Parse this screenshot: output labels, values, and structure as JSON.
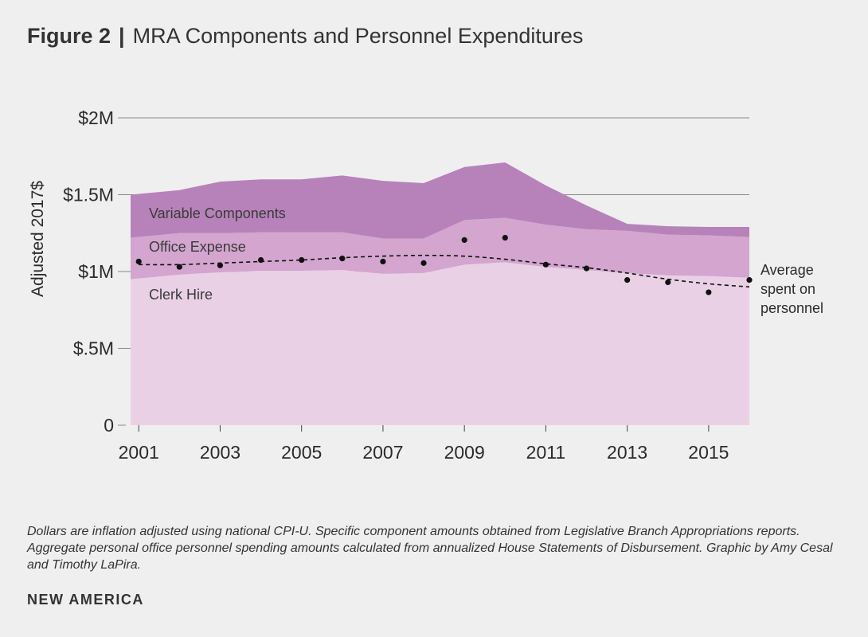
{
  "header": {
    "figure_label": "Figure 2",
    "separator": "|",
    "title": "MRA Components and Personnel Expenditures"
  },
  "caption": "Dollars are inflation adjusted using national CPI-U.  Specific component amounts obtained from Legislative Branch Appropriations reports. Aggregate personal office personnel spending amounts calculated from annualized House Statements of Disbursement. Graphic by Amy Cesal and Timothy LaPira.",
  "brand": "NEW AMERICA",
  "colors": {
    "background": "#efefef",
    "clerk_hire": "#e9d0e5",
    "office_expense": "#d3a5cf",
    "variable_components": "#b782b9",
    "grid": "#8a8a8a",
    "points": "#111111"
  },
  "chart_data": {
    "type": "area",
    "ylabel": "Adjusted 2017$",
    "xlim": [
      2000.8,
      2016
    ],
    "ylim": [
      0,
      2000000
    ],
    "y_ticks": [
      0,
      500000,
      1000000,
      1500000,
      2000000
    ],
    "y_tick_labels": [
      "0",
      "$.5M",
      "$1M",
      "$1.5M",
      "$2M"
    ],
    "x_ticks": [
      2001,
      2003,
      2005,
      2007,
      2009,
      2011,
      2013,
      2015
    ],
    "x_tick_labels": [
      "2001",
      "2003",
      "2005",
      "2007",
      "2009",
      "2011",
      "2013",
      "2015"
    ],
    "grid": "horizontal",
    "x": [
      2000.8,
      2002,
      2003,
      2004,
      2005,
      2006,
      2007,
      2008,
      2009,
      2010,
      2011,
      2012,
      2013,
      2014,
      2015,
      2016
    ],
    "series": [
      {
        "name": "Clerk Hire",
        "values": [
          950000,
          980000,
          995000,
          1005000,
          1005000,
          1010000,
          985000,
          990000,
          1045000,
          1060000,
          1030000,
          1010000,
          990000,
          975000,
          970000,
          960000
        ]
      },
      {
        "name": "Office Expense",
        "values": [
          270000,
          270000,
          255000,
          250000,
          250000,
          245000,
          230000,
          225000,
          290000,
          290000,
          275000,
          265000,
          275000,
          265000,
          265000,
          265000
        ]
      },
      {
        "name": "Variable Components",
        "values": [
          280000,
          280000,
          335000,
          345000,
          345000,
          370000,
          375000,
          360000,
          345000,
          360000,
          255000,
          155000,
          45000,
          55000,
          55000,
          65000
        ]
      }
    ],
    "personnel_points": {
      "name": "Average spent on personnel",
      "x": [
        2001,
        2002,
        2003,
        2004,
        2005,
        2006,
        2007,
        2008,
        2009,
        2010,
        2011,
        2012,
        2013,
        2014,
        2015,
        2016
      ],
      "values": [
        1065000,
        1030000,
        1040000,
        1075000,
        1075000,
        1085000,
        1065000,
        1055000,
        1205000,
        1220000,
        1045000,
        1020000,
        945000,
        930000,
        865000,
        945000
      ]
    },
    "trend_line": {
      "x": [
        2001,
        2002,
        2003,
        2004,
        2005,
        2006,
        2007,
        2008,
        2009,
        2010,
        2011,
        2012,
        2013,
        2014,
        2015,
        2016
      ],
      "values": [
        1045000,
        1045000,
        1055000,
        1065000,
        1075000,
        1090000,
        1100000,
        1105000,
        1100000,
        1080000,
        1050000,
        1025000,
        990000,
        950000,
        920000,
        900000
      ]
    },
    "area_labels": [
      "Variable Components",
      "Office Expense",
      "Clerk Hire"
    ],
    "annotation": "Average spent on personnel",
    "annotation_lines": [
      "Average",
      "spent on",
      "personnel"
    ]
  }
}
